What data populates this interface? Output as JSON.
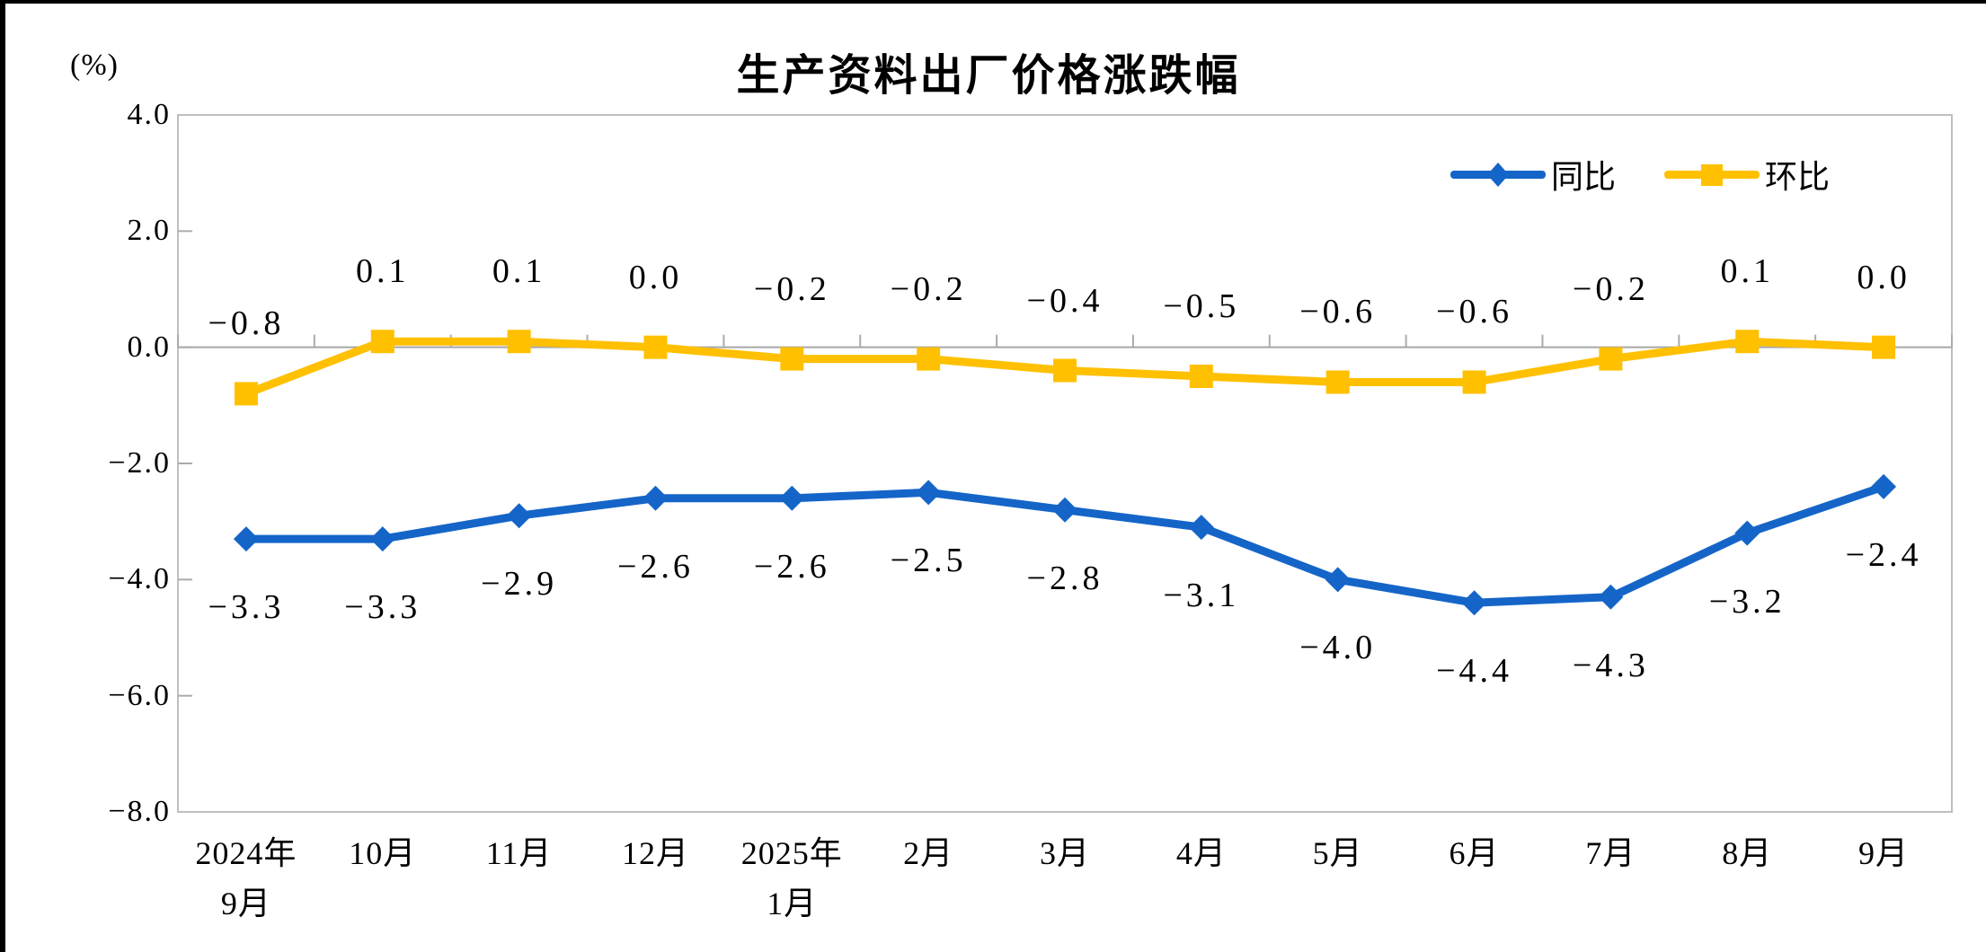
{
  "chart_data": {
    "type": "line",
    "title": "生产资料出厂价格涨跌幅",
    "unit_label": "(%)",
    "categories": [
      [
        "2024年",
        "9月"
      ],
      [
        "10月"
      ],
      [
        "11月"
      ],
      [
        "12月"
      ],
      [
        "2025年",
        "1月"
      ],
      [
        "2月"
      ],
      [
        "3月"
      ],
      [
        "4月"
      ],
      [
        "5月"
      ],
      [
        "6月"
      ],
      [
        "7月"
      ],
      [
        "8月"
      ],
      [
        "9月"
      ]
    ],
    "series": [
      {
        "name": "同比",
        "color": "#1565C8",
        "marker": "diamond",
        "label_position": "below",
        "values": [
          -3.3,
          -3.3,
          -2.9,
          -2.6,
          -2.6,
          -2.5,
          -2.8,
          -3.1,
          -4.0,
          -4.4,
          -4.3,
          -3.2,
          -2.4
        ]
      },
      {
        "name": "环比",
        "color": "#FFC000",
        "marker": "square",
        "label_position": "above",
        "values": [
          -0.8,
          0.1,
          0.1,
          0.0,
          -0.2,
          -0.2,
          -0.4,
          -0.5,
          -0.6,
          -0.6,
          -0.2,
          0.1,
          0.0
        ]
      }
    ],
    "y_axis": {
      "ticks": [
        4.0,
        2.0,
        0.0,
        -2.0,
        -4.0,
        -6.0,
        -8.0
      ],
      "min": -8.0,
      "max": 4.0
    },
    "legend_position": "top-right",
    "grid": "zero-line-only",
    "axis_color": "#BFBFBF",
    "tick_color": "#ABABAB",
    "zero_line_color": "#A6A6A6",
    "text_color": "#000000"
  }
}
